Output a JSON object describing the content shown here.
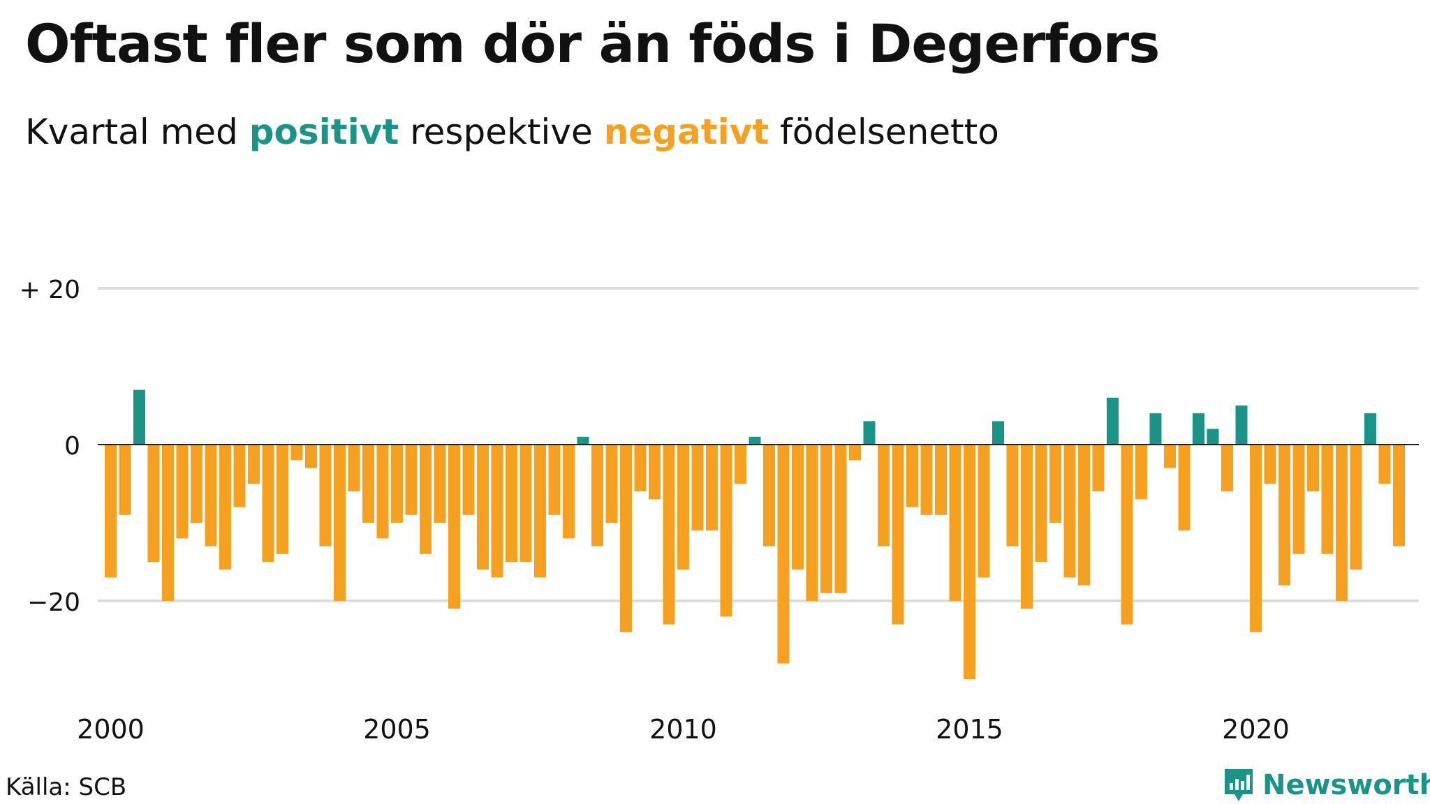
{
  "header": {
    "title": "Oftast fler som dör än föds i Degerfors",
    "subtitle_parts": {
      "prefix": "Kvartal med",
      "positive": "positivt",
      "middle": "respektive",
      "negative": "negativt",
      "suffix": "födelsenetto"
    }
  },
  "footer": {
    "source": "Källa: SCB",
    "brand": "Newsworthy"
  },
  "colors": {
    "positive": "#1a9486",
    "negative": "#f5a01f",
    "grid": "#dddddd",
    "zero_line": "#222222"
  },
  "chart_data": {
    "type": "bar",
    "title": "Oftast fler som dör än föds i Degerfors",
    "subtitle": "Kvartal med positivt respektive negativt födelsenetto",
    "x_start": {
      "year": 2000,
      "quarter": 1
    },
    "x_ticks": [
      2000,
      2005,
      2010,
      2015,
      2020
    ],
    "y_ticks": [
      {
        "value": 20,
        "label": "+ 20"
      },
      {
        "value": 0,
        "label": "0"
      },
      {
        "value": -20,
        "label": "−20"
      }
    ],
    "ylim": [
      -30,
      20
    ],
    "grid": true,
    "values": [
      -17,
      -9,
      7,
      -15,
      -20,
      -12,
      -10,
      -13,
      -16,
      -8,
      -5,
      -15,
      -14,
      -2,
      -3,
      -13,
      -20,
      -6,
      -10,
      -12,
      -10,
      -9,
      -14,
      -10,
      -21,
      -9,
      -16,
      -17,
      -15,
      -15,
      -17,
      -9,
      -12,
      1,
      -13,
      -10,
      -24,
      -6,
      -7,
      -23,
      -16,
      -11,
      -11,
      -22,
      -5,
      1,
      -13,
      -28,
      -16,
      -20,
      -19,
      -19,
      -2,
      3,
      -13,
      -23,
      -8,
      -9,
      -9,
      -20,
      -30,
      -17,
      3,
      -13,
      -21,
      -15,
      -10,
      -17,
      -18,
      -6,
      6,
      -23,
      -7,
      4,
      -3,
      -11,
      4,
      2,
      -6,
      5,
      -24,
      -5,
      -18,
      -14,
      -6,
      -14,
      -20,
      -16,
      4,
      -5,
      -13
    ]
  }
}
